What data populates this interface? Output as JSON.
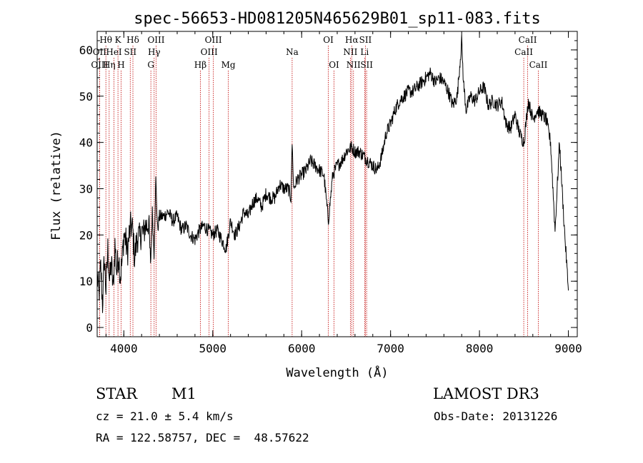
{
  "chart_data": {
    "type": "line",
    "title": "spec-56653-HD081205N465629B01_sp11-083.fits",
    "xlabel": "Wavelength (Å)",
    "ylabel": "Flux (relative)",
    "xlim": [
      3700,
      9100
    ],
    "ylim": [
      -2,
      64
    ],
    "x_ticks": [
      4000,
      5000,
      6000,
      7000,
      8000,
      9000
    ],
    "y_ticks": [
      0,
      10,
      20,
      30,
      40,
      50,
      60
    ],
    "grid": false,
    "series": [
      {
        "x": [
          3700,
          3720,
          3740,
          3760,
          3780,
          3800,
          3820,
          3840,
          3860,
          3880,
          3900,
          3920,
          3940,
          3960,
          3980,
          4000,
          4020,
          4040,
          4060,
          4080,
          4100,
          4120,
          4140,
          4160,
          4180,
          4200,
          4220,
          4240,
          4260,
          4280,
          4300,
          4320,
          4340,
          4360,
          4380,
          4400,
          4450,
          4500,
          4550,
          4600,
          4650,
          4700,
          4750,
          4800,
          4850,
          4900,
          4950,
          5000,
          5050,
          5100,
          5150,
          5200,
          5250,
          5300,
          5350,
          5400,
          5450,
          5500,
          5550,
          5600,
          5650,
          5700,
          5750,
          5800,
          5850,
          5880,
          5893,
          5910,
          5950,
          6000,
          6050,
          6100,
          6150,
          6200,
          6250,
          6300,
          6350,
          6400,
          6450,
          6500,
          6563,
          6600,
          6650,
          6700,
          6750,
          6800,
          6850,
          6900,
          6950,
          7000,
          7050,
          7100,
          7150,
          7200,
          7250,
          7300,
          7350,
          7400,
          7450,
          7500,
          7550,
          7600,
          7650,
          7700,
          7750,
          7800,
          7820,
          7850,
          7900,
          7950,
          8000,
          8050,
          8100,
          8150,
          8200,
          8250,
          8300,
          8350,
          8400,
          8450,
          8500,
          8550,
          8600,
          8650,
          8700,
          8750,
          8800,
          8850,
          8900,
          8950,
          9000
        ],
        "y": [
          11,
          7,
          13,
          5,
          15,
          8,
          17,
          10,
          14,
          8,
          18,
          12,
          16,
          11,
          14,
          20,
          19,
          16,
          20,
          22,
          21,
          15,
          18,
          20,
          19,
          21,
          20,
          22,
          22,
          23,
          13,
          25,
          16,
          32,
          21,
          24,
          24,
          25,
          23,
          24,
          21,
          22,
          20,
          19,
          21,
          22,
          21,
          20,
          21,
          19,
          17,
          23,
          20,
          22,
          25,
          24,
          27,
          28,
          26,
          29,
          28,
          28,
          31,
          30,
          30,
          28,
          40,
          30,
          32,
          33,
          34,
          36,
          35,
          34,
          33,
          23,
          33,
          35,
          36,
          38,
          39,
          38,
          38,
          37,
          36,
          35,
          34,
          37,
          42,
          44,
          47,
          49,
          50,
          51,
          51,
          52,
          53,
          54,
          55,
          53,
          54,
          53,
          51,
          48,
          50,
          62,
          53,
          47,
          50,
          49,
          51,
          52,
          48,
          49,
          48,
          49,
          44,
          43,
          46,
          42,
          40,
          49,
          45,
          47,
          46,
          45,
          40,
          21,
          40,
          23,
          8
        ]
      }
    ],
    "spectral_lines": [
      {
        "label": "Hθ",
        "x": 3798,
        "row": 0
      },
      {
        "label": "OII",
        "x": 3727,
        "row": 1
      },
      {
        "label": "OIII",
        "x": 3727,
        "row": 2
      },
      {
        "label": "K",
        "x": 3934,
        "row": 0
      },
      {
        "label": "HeI",
        "x": 3889,
        "row": 1
      },
      {
        "label": "Hη",
        "x": 3835,
        "row": 2
      },
      {
        "label": "Hδ",
        "x": 4102,
        "row": 0
      },
      {
        "label": "SII",
        "x": 4072,
        "row": 1
      },
      {
        "label": "H",
        "x": 3969,
        "row": 2
      },
      {
        "label": "OIII",
        "x": 4363,
        "row": 0
      },
      {
        "label": "Hγ",
        "x": 4341,
        "row": 1
      },
      {
        "label": "G",
        "x": 4304,
        "row": 2
      },
      {
        "label": "OIII",
        "x": 5007,
        "row": 0
      },
      {
        "label": "OIII",
        "x": 4959,
        "row": 1
      },
      {
        "label": "Hβ",
        "x": 4861,
        "row": 2
      },
      {
        "label": "Mg",
        "x": 5175,
        "row": 2
      },
      {
        "label": "Na",
        "x": 5893,
        "row": 1
      },
      {
        "label": "OI",
        "x": 6300,
        "row": 0
      },
      {
        "label": "OI",
        "x": 6364,
        "row": 2
      },
      {
        "label": "Hα",
        "x": 6563,
        "row": 0
      },
      {
        "label": "SII",
        "x": 6717,
        "row": 0
      },
      {
        "label": "NII",
        "x": 6548,
        "row": 1
      },
      {
        "label": "Li",
        "x": 6708,
        "row": 1
      },
      {
        "label": "NII",
        "x": 6583,
        "row": 2
      },
      {
        "label": "SII",
        "x": 6731,
        "row": 2
      },
      {
        "label": "CaII",
        "x": 8542,
        "row": 0
      },
      {
        "label": "CaII",
        "x": 8498,
        "row": 1
      },
      {
        "label": "CaII",
        "x": 8662,
        "row": 2
      }
    ],
    "line_color": "#000000",
    "marker_color": "#c00000"
  },
  "info": {
    "object_class": "STAR",
    "subclass": "M1",
    "survey": "LAMOST DR3",
    "redshift": "cz = 21.0 ± 5.4 km/s",
    "obs_date": "Obs-Date: 20131226",
    "coords": "RA = 122.58757, DEC =  48.57622"
  }
}
